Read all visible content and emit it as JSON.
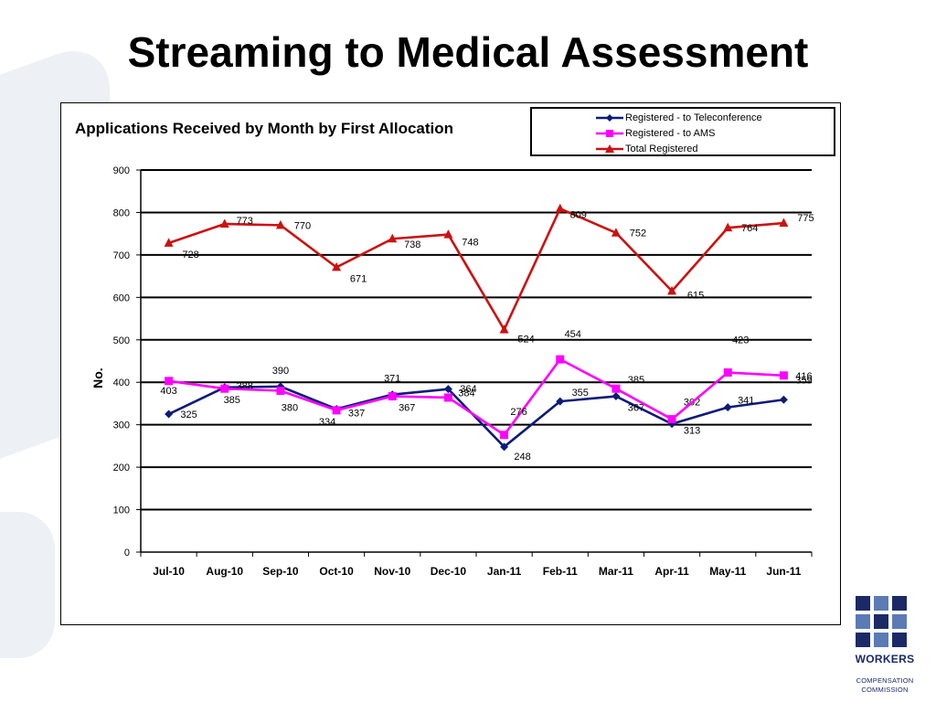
{
  "slide": {
    "title": "Streaming to Medical Assessment"
  },
  "logo": {
    "name": "logo-icon",
    "line1": "WORKERS",
    "line2": "COMPENSATION",
    "line3": "COMMISSION",
    "color": "#1b2a66",
    "accent": "#5b7bb5"
  },
  "chart_data": {
    "type": "line",
    "title": "Applications Received by Month by First Allocation",
    "ylabel": "No.",
    "xlabel": "",
    "ylim": [
      0,
      900
    ],
    "yticks": [
      0,
      100,
      200,
      300,
      400,
      500,
      600,
      700,
      800,
      900
    ],
    "grid": true,
    "legend_position": "top-right",
    "categories": [
      "Jul-10",
      "Aug-10",
      "Sep-10",
      "Oct-10",
      "Nov-10",
      "Dec-10",
      "Jan-11",
      "Feb-11",
      "Mar-11",
      "Apr-11",
      "May-11",
      "Jun-11"
    ],
    "series": [
      {
        "name": "Registered - to Teleconference",
        "color": "#0d1c78",
        "marker": "diamond",
        "values": [
          325,
          388,
          390,
          337,
          371,
          384,
          248,
          355,
          367,
          302,
          341,
          359
        ]
      },
      {
        "name": "Registered - to AMS",
        "color": "#ff00ff",
        "marker": "square",
        "values": [
          403,
          385,
          380,
          334,
          367,
          364,
          276,
          454,
          385,
          313,
          423,
          416
        ]
      },
      {
        "name": "Total Registered",
        "color": "#cc1111",
        "marker": "triangle",
        "values": [
          728,
          773,
          770,
          671,
          738,
          748,
          524,
          809,
          752,
          615,
          764,
          775
        ]
      }
    ]
  }
}
